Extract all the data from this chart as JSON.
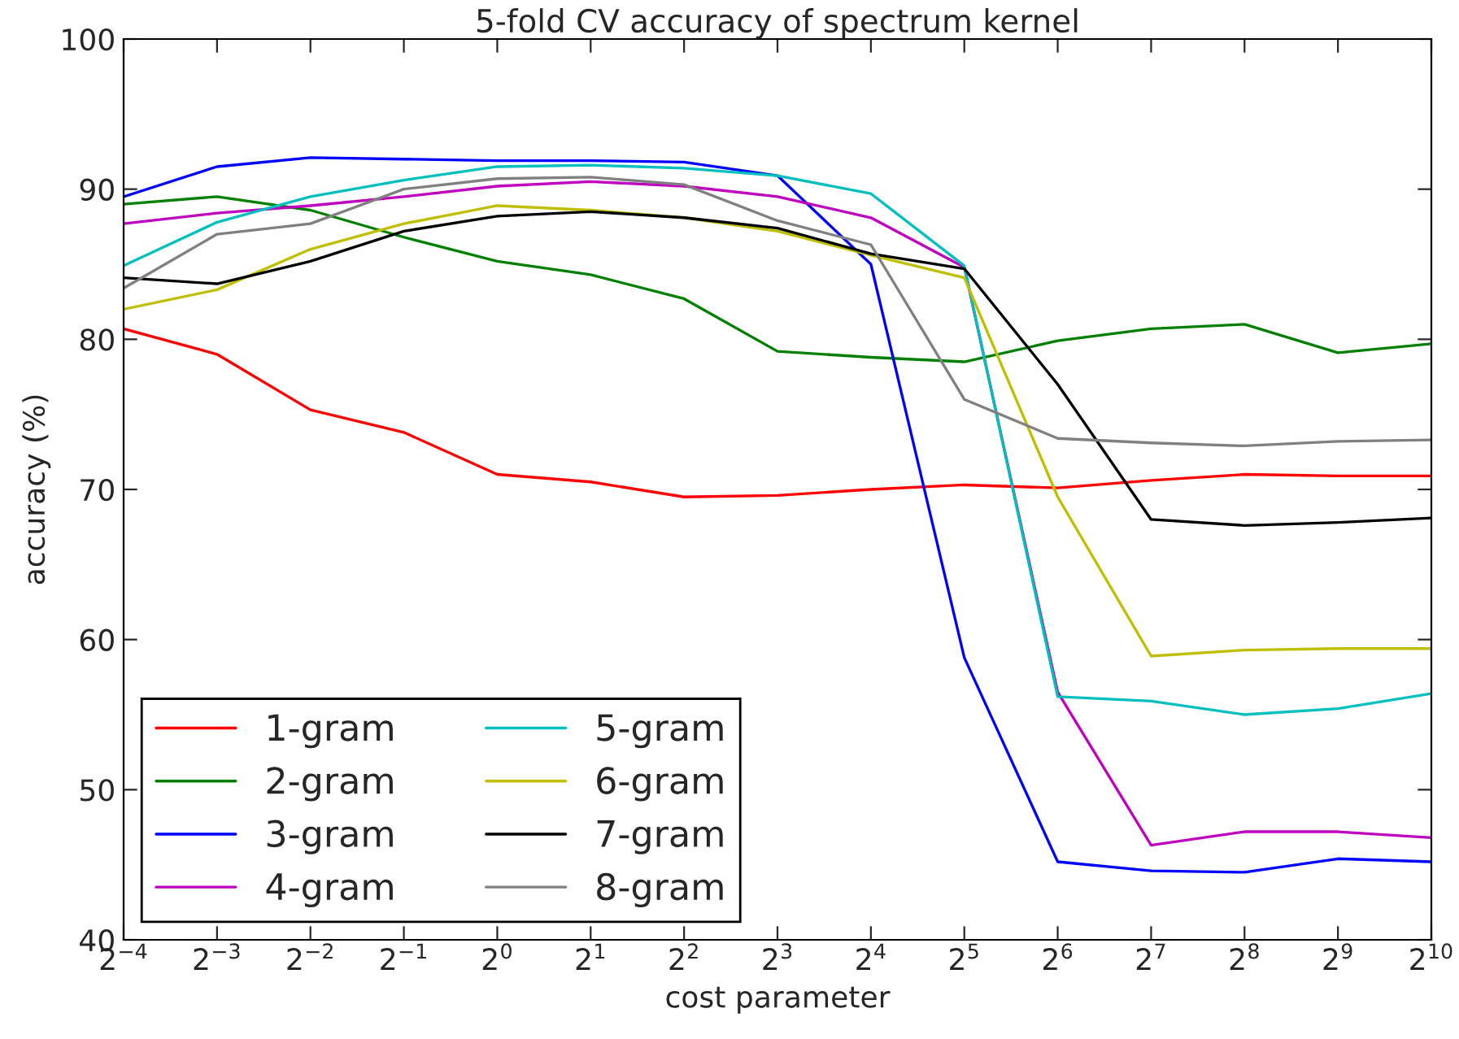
{
  "chart_data": {
    "type": "line",
    "title": "5-fold CV accuracy of spectrum kernel",
    "xlabel": "cost parameter",
    "ylabel": "accuracy (%)",
    "x": [
      0.0625,
      0.125,
      0.25,
      0.5,
      1,
      2,
      4,
      8,
      16,
      32,
      64,
      128,
      256,
      512,
      1024
    ],
    "log": "x",
    "xlim": [
      0.0625,
      1024
    ],
    "xticks": [
      {
        "value": 0.0625,
        "label": "2$^{−4}$"
      },
      {
        "value": 0.125,
        "label": "2$^{−3}$"
      },
      {
        "value": 0.25,
        "label": "2$^{−2}$"
      },
      {
        "value": 0.5,
        "label": "2$^{−1}$"
      },
      {
        "value": 1,
        "label": "2$^{0}$"
      },
      {
        "value": 2,
        "label": "2$^{1}$"
      },
      {
        "value": 4,
        "label": "2$^{2}$"
      },
      {
        "value": 8,
        "label": "2$^{3}$"
      },
      {
        "value": 16,
        "label": "2$^{4}$"
      },
      {
        "value": 32,
        "label": "2$^{5}$"
      },
      {
        "value": 64,
        "label": "2$^{6}$"
      },
      {
        "value": 128,
        "label": "2$^{7}$"
      },
      {
        "value": 256,
        "label": "2$^{8}$"
      },
      {
        "value": 512,
        "label": "2$^{9}$"
      },
      {
        "value": 1024,
        "label": "2$^{10}$"
      }
    ],
    "ylim": [
      40,
      100
    ],
    "yticks": [
      40,
      50,
      60,
      70,
      80,
      90,
      100
    ],
    "grid": false,
    "legend": "bottom left",
    "series": [
      {
        "name": "1-gram",
        "color": "#ff0000",
        "values": [
          80.7,
          79.0,
          75.3,
          73.8,
          71.0,
          70.5,
          69.5,
          69.6,
          70.0,
          70.3,
          70.1,
          70.6,
          71.0,
          70.9,
          70.9
        ]
      },
      {
        "name": "2-gram",
        "color": "#008000",
        "values": [
          89.0,
          89.5,
          88.6,
          86.8,
          85.2,
          84.3,
          82.7,
          79.2,
          78.8,
          78.5,
          79.9,
          80.7,
          81.0,
          79.1,
          79.7
        ]
      },
      {
        "name": "3-gram",
        "color": "#0000ff",
        "values": [
          89.5,
          91.5,
          92.1,
          92.0,
          91.9,
          91.9,
          91.8,
          90.9,
          85.0,
          58.8,
          45.2,
          44.6,
          44.5,
          45.4,
          45.2
        ]
      },
      {
        "name": "4-gram",
        "color": "#bf00bf",
        "values": [
          87.7,
          88.4,
          88.9,
          89.5,
          90.2,
          90.5,
          90.2,
          89.5,
          88.1,
          84.8,
          56.5,
          46.3,
          47.2,
          47.2,
          46.8
        ]
      },
      {
        "name": "5-gram",
        "color": "#00bfbf",
        "values": [
          84.9,
          87.8,
          89.5,
          90.6,
          91.5,
          91.6,
          91.4,
          90.9,
          89.7,
          84.9,
          56.2,
          55.9,
          55.0,
          55.4,
          56.4
        ]
      },
      {
        "name": "6-gram",
        "color": "#bfbf00",
        "values": [
          82.0,
          83.3,
          86.0,
          87.7,
          88.9,
          88.6,
          88.1,
          87.2,
          85.6,
          84.1,
          69.5,
          58.9,
          59.3,
          59.4,
          59.4
        ]
      },
      {
        "name": "7-gram",
        "color": "#000000",
        "values": [
          84.1,
          83.7,
          85.2,
          87.2,
          88.2,
          88.5,
          88.1,
          87.4,
          85.7,
          84.7,
          77.0,
          68.0,
          67.6,
          67.8,
          68.1
        ]
      },
      {
        "name": "8-gram",
        "color": "#808080",
        "values": [
          83.4,
          87.0,
          87.7,
          90.0,
          90.7,
          90.8,
          90.3,
          87.9,
          86.3,
          76.0,
          73.4,
          73.1,
          72.9,
          73.2,
          73.3
        ]
      }
    ]
  }
}
